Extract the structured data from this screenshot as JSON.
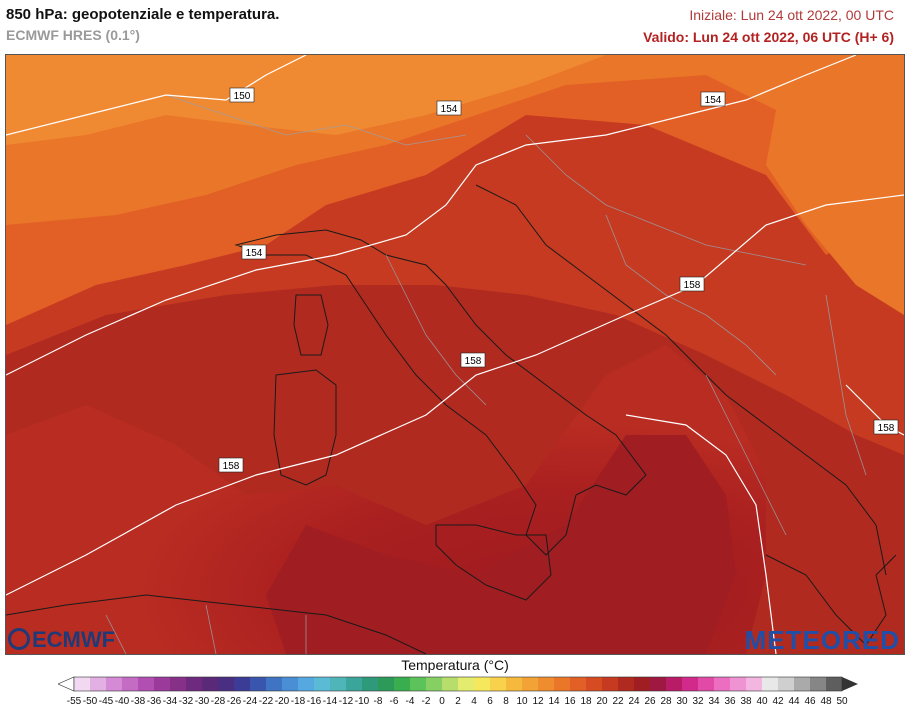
{
  "header": {
    "title": "850 hPa: geopotenziale e temperatura.",
    "model": "ECMWF HRES (0.1°)",
    "initial": "Iniziale: Lun 24 ott 2022, 00 UTC",
    "valid": "Valido: Lun 24 ott 2022, 06 UTC (H+ 6)"
  },
  "map": {
    "contour_labels": [
      "150",
      "154",
      "154",
      "154",
      "158",
      "158",
      "158",
      "158"
    ]
  },
  "logos": {
    "left": "ECMWF",
    "right": "METEORED"
  },
  "legend": {
    "title": "Temperatura (°C)",
    "ticks": [
      "-55",
      "-50",
      "-45",
      "-40",
      "-38",
      "-36",
      "-34",
      "-32",
      "-30",
      "-28",
      "-26",
      "-24",
      "-22",
      "-20",
      "-18",
      "-16",
      "-14",
      "-12",
      "-10",
      "-8",
      "-6",
      "-4",
      "-2",
      "0",
      "2",
      "4",
      "6",
      "8",
      "10",
      "12",
      "14",
      "16",
      "18",
      "20",
      "22",
      "24",
      "26",
      "28",
      "30",
      "32",
      "34",
      "36",
      "38",
      "40",
      "42",
      "44",
      "46",
      "48",
      "50"
    ],
    "colors": [
      "#f2d9f2",
      "#e2b0e2",
      "#d48ad4",
      "#c46bc4",
      "#b24fb2",
      "#9b3a9b",
      "#873088",
      "#6e2a7e",
      "#5a2a78",
      "#4a2e82",
      "#3c3b95",
      "#3a55ad",
      "#3f73c4",
      "#4a8fd6",
      "#56a8e0",
      "#5bbad6",
      "#4fb5b8",
      "#3aa59a",
      "#2f9a7a",
      "#2e9a5a",
      "#3aae4f",
      "#5cc25a",
      "#86d063",
      "#b7de6c",
      "#e3ec6e",
      "#f6e85c",
      "#f8d24a",
      "#f6b93e",
      "#f3a235",
      "#ef8c2e",
      "#ea7629",
      "#e26025",
      "#d64b22",
      "#c53a21",
      "#b12a1f",
      "#a01d22",
      "#9e1842",
      "#b81c66",
      "#d22a8a",
      "#e24aa8",
      "#ec6ec0",
      "#f093d2",
      "#f2b6e0",
      "#e8e8e8",
      "#cfcfcf",
      "#aaaaaa",
      "#868686",
      "#5e5e5e"
    ]
  }
}
